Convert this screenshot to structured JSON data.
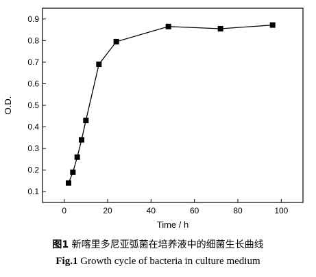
{
  "chart_data": {
    "type": "line",
    "x": [
      2,
      4,
      6,
      8,
      10,
      16,
      24,
      48,
      72,
      96
    ],
    "series": [
      {
        "values": [
          0.14,
          0.19,
          0.26,
          0.34,
          0.43,
          0.69,
          0.795,
          0.865,
          0.855,
          0.872
        ]
      }
    ],
    "xlabel": "Time / h",
    "ylabel": "O.D.",
    "xlim": [
      -10,
      110
    ],
    "ylim": [
      0.05,
      0.95
    ],
    "xticks": [
      0,
      20,
      40,
      60,
      80,
      100
    ],
    "yticks": [
      0.1,
      0.2,
      0.3,
      0.4,
      0.5,
      0.6,
      0.7,
      0.8,
      0.9
    ],
    "marker": "square",
    "grid": false,
    "legend": "none"
  },
  "caption": {
    "zh_fig_label": "图1",
    "zh_text": "新喀里多尼亚弧菌在培养液中的细菌生长曲线",
    "en_fig_label": "Fig.1",
    "en_text": "Growth cycle of bacteria in culture medium"
  }
}
